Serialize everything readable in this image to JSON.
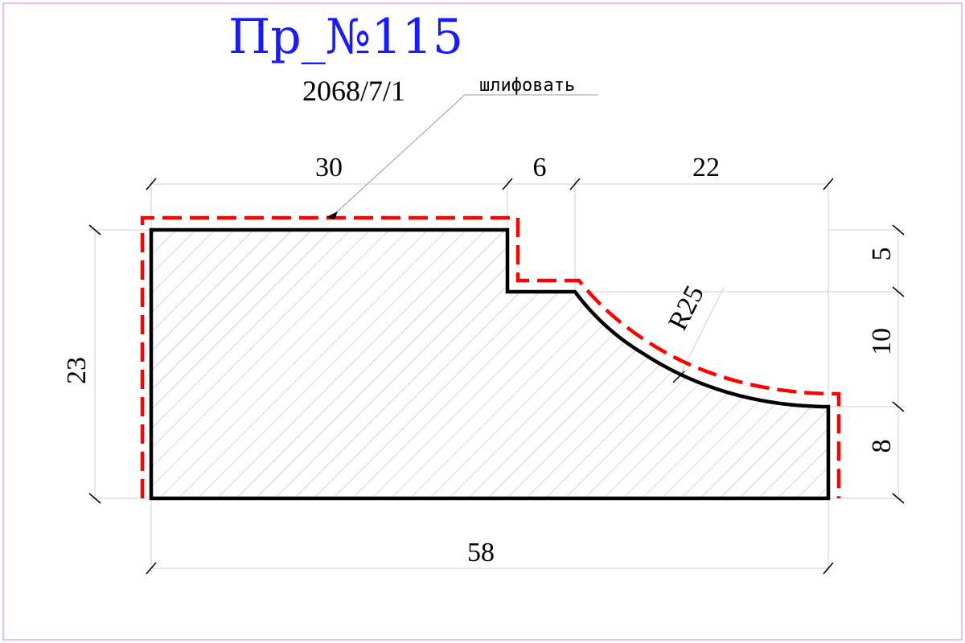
{
  "title": "Пр_№115",
  "code": "2068/7/1",
  "note": "шлифовать",
  "colors": {
    "title": "#1a1aff",
    "outline": "#000000",
    "grind_line": "#ff0000",
    "hatch": "#c9a0a0",
    "frame": "#e8a8e8",
    "dim_line": "#cfcfcf"
  },
  "dimensions": {
    "top_left": "30",
    "top_step": "6",
    "top_right": "22",
    "overall_width": "58",
    "overall_height": "23",
    "right_top": "5",
    "right_mid": "10",
    "right_bottom": "8",
    "radius": "R25"
  }
}
